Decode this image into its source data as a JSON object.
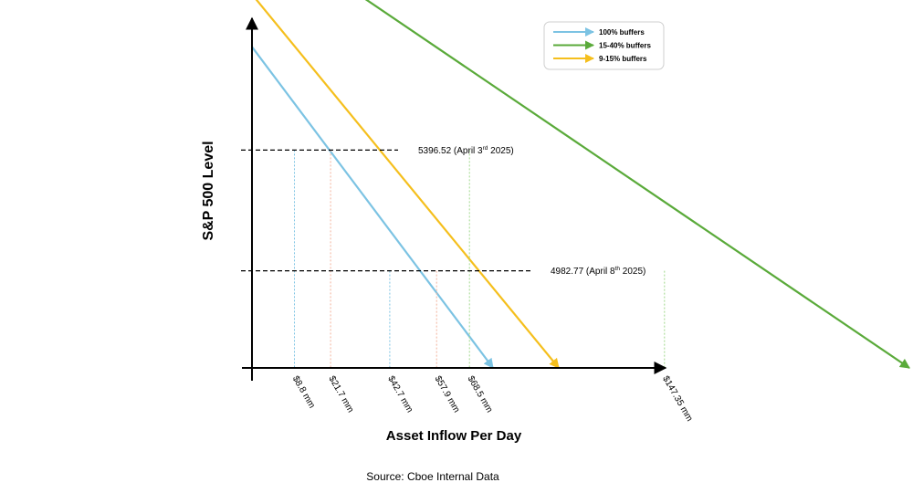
{
  "chart_data": {
    "type": "line",
    "ylabel": "S&P 500 Level",
    "xlabel": "Asset Inflow Per Day",
    "source": "Source: Cboe Internal Data",
    "grid": false,
    "legend_position": "top-right",
    "series": [
      {
        "name": "100% buffers",
        "color": "#7cc3e3",
        "points": [
          {
            "x": 0,
            "y": 5750
          },
          {
            "x": 88,
            "y": 4650
          }
        ]
      },
      {
        "name": "15-40% buffers",
        "color": "#5aaa3a",
        "points": [
          {
            "x": 20,
            "y": 6050
          },
          {
            "x": 240,
            "y": 4650
          }
        ]
      },
      {
        "name": "9-15% buffers",
        "color": "#f5bf1d",
        "points": [
          {
            "x": 0,
            "y": 5930
          },
          {
            "x": 112,
            "y": 4650
          }
        ]
      }
    ],
    "levels": [
      {
        "value": 5396.52,
        "label_main": "5396.52 (April 3",
        "label_sup": "rd",
        "label_end": " 2025)"
      },
      {
        "value": 4982.77,
        "label_main": "4982.77 (April 8",
        "label_sup": "th",
        "label_end": " 2025)"
      }
    ],
    "x_markers": [
      {
        "x": 15.5,
        "label": "$8.8 mm",
        "color": "#7cc3e3"
      },
      {
        "x": 28.7,
        "label": "$21.7 mm",
        "color": "#f2b19a"
      },
      {
        "x": 50.3,
        "label": "$42.7 mm",
        "color": "#7cc3e3"
      },
      {
        "x": 67.4,
        "label": "$57.9 mm",
        "color": "#f2b19a"
      },
      {
        "x": 79.4,
        "label": "$68.5 mm",
        "color": "#9fd88a"
      },
      {
        "x": 150.6,
        "label": "$147.35 mm",
        "color": "#9fd88a"
      }
    ]
  }
}
